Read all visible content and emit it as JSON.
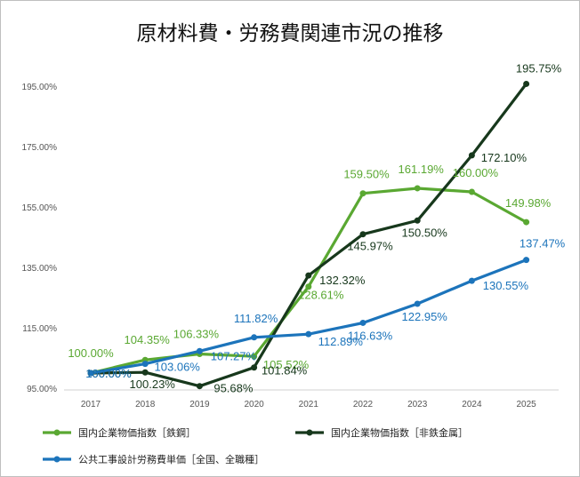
{
  "chart_data": {
    "type": "line",
    "title": "原材料費・労務費関連市況の推移",
    "xlabel": "",
    "ylabel": "",
    "x": [
      "2017",
      "2018",
      "2019",
      "2020",
      "2021",
      "2022",
      "2023",
      "2024",
      "2025"
    ],
    "ylim": [
      95,
      200
    ],
    "y_ticks": [
      "95.00%",
      "115.00%",
      "135.00%",
      "155.00%",
      "175.00%",
      "195.00%"
    ],
    "grid": false,
    "legend": "bottom",
    "series": [
      {
        "name": "国内企業物価指数［鉄鋼］",
        "color": "#5aa832",
        "values": [
          100.0,
          104.35,
          106.33,
          105.52,
          128.61,
          159.5,
          161.19,
          160.0,
          149.98
        ],
        "labels": [
          "100.00%",
          "104.35%",
          "106.33%",
          "105.52%",
          "128.61%",
          "159.50%",
          "161.19%",
          "160.00%",
          "149.98%"
        ]
      },
      {
        "name": "国内企業物価指数［非鉄金属］",
        "color": "#17381c",
        "values": [
          100.0,
          100.23,
          95.68,
          101.84,
          132.32,
          145.97,
          150.5,
          172.1,
          195.75
        ],
        "labels": [
          "100.00%",
          "100.23%",
          "95.68%",
          "101.84%",
          "132.32%",
          "145.97%",
          "150.50%",
          "172.10%",
          "195.75%"
        ]
      },
      {
        "name": "公共工事設計労務費単価［全国、全職種］",
        "color": "#1c74bb",
        "values": [
          100.0,
          103.06,
          107.27,
          111.82,
          112.89,
          116.63,
          122.95,
          130.55,
          137.47
        ],
        "labels": [
          "100.00%",
          "103.06%",
          "107.27%",
          "111.82%",
          "112.89%",
          "116.63%",
          "122.95%",
          "130.55%",
          "137.47%"
        ]
      }
    ]
  }
}
